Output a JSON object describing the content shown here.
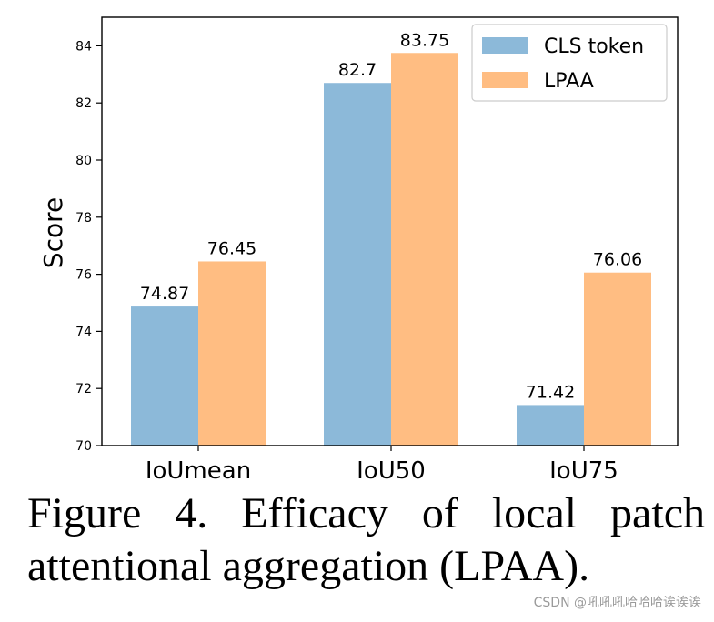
{
  "chart_data": {
    "type": "bar",
    "categories": [
      "IoUmean",
      "IoU50",
      "IoU75"
    ],
    "series": [
      {
        "name": "CLS token",
        "values": [
          74.87,
          82.7,
          71.42
        ],
        "color": "#8cb9d9",
        "labels": [
          "74.87",
          "82.7",
          "71.42"
        ]
      },
      {
        "name": "LPAA",
        "values": [
          76.45,
          83.75,
          76.06
        ],
        "color": "#ffbd82",
        "labels": [
          "76.45",
          "83.75",
          "76.06"
        ]
      }
    ],
    "title": "",
    "xlabel": "",
    "ylabel": "Score",
    "ylim": [
      70,
      85
    ],
    "yticks": [
      70,
      72,
      74,
      76,
      78,
      80,
      82,
      84
    ],
    "grid": false,
    "legend_position": "top-right"
  },
  "caption": "Figure 4.  Efficacy of local patch attentional aggregation (LPAA).",
  "watermark": "CSDN @吼吼吼哈哈哈诶诶诶"
}
